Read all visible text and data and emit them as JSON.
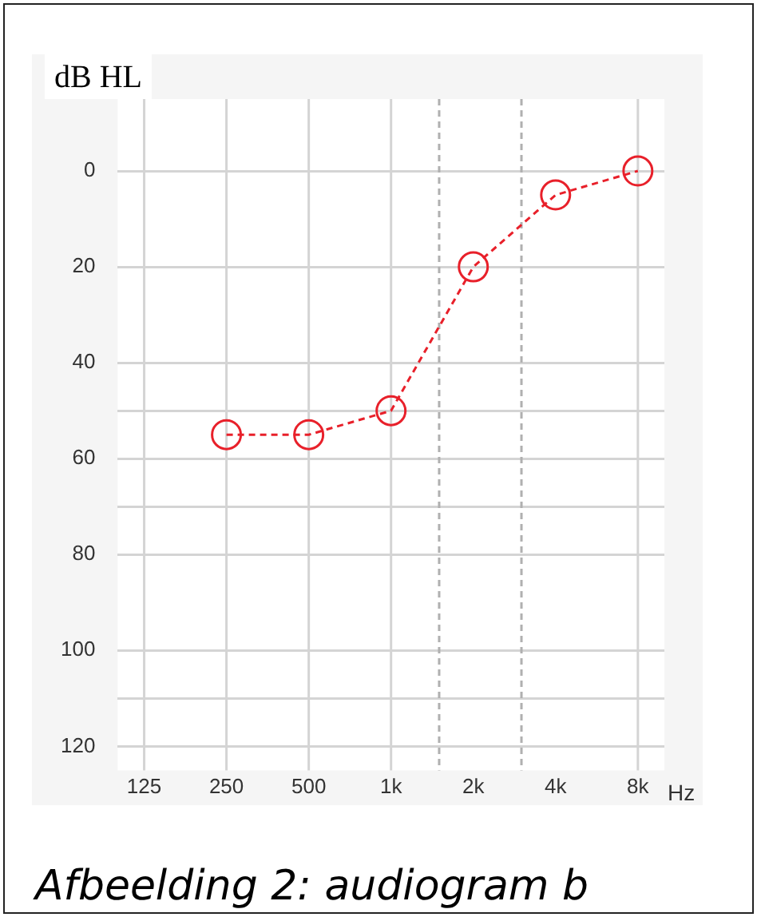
{
  "chart_data": {
    "type": "line",
    "ylabel": "dB HL",
    "xlabel": "Hz",
    "annotations": [
      "Afbeelding 2: audiogram b"
    ],
    "x": [
      250,
      500,
      1000,
      2000,
      4000,
      8000
    ],
    "series": [
      {
        "color": "#e8202a",
        "values": [
          55,
          55,
          50,
          20,
          5,
          0
        ]
      }
    ],
    "log": "x",
    "xlim": [
      100,
      10000
    ],
    "xticks": [
      125,
      250,
      500,
      {
        "value": 1000,
        "label": "1k"
      },
      {
        "value": 2000,
        "label": "2k"
      },
      {
        "value": 4000,
        "label": "4k"
      },
      {
        "value": 8000,
        "label": "8k"
      }
    ],
    "ylim": [
      125,
      -15
    ],
    "yticks": [
      0,
      20,
      40,
      {
        "value": 50,
        "label": null
      },
      60,
      {
        "value": 70,
        "label": null
      },
      80,
      100,
      {
        "value": 110,
        "label": null
      },
      120
    ],
    "grid": "y",
    "marker": "circle",
    "line_style": "dashed",
    "legend": false,
    "ref_lines": [
      {
        "axis": "x",
        "value": 125,
        "color": "#d4d4d4",
        "line_style": "solid"
      },
      {
        "axis": "x",
        "value": 250,
        "color": "#d4d4d4",
        "line_style": "solid"
      },
      {
        "axis": "x",
        "value": 500,
        "color": "#d4d4d4",
        "line_style": "solid"
      },
      {
        "axis": "x",
        "value": 1000,
        "color": "#d4d4d4",
        "line_style": "solid"
      },
      {
        "axis": "x",
        "value": 1500,
        "color": "#b0b0b0",
        "line_style": "dashed"
      },
      {
        "axis": "x",
        "value": 3000,
        "color": "#b0b0b0",
        "line_style": "dashed"
      },
      {
        "axis": "x",
        "value": 8000,
        "color": "#d4d4d4",
        "line_style": "solid"
      }
    ]
  }
}
